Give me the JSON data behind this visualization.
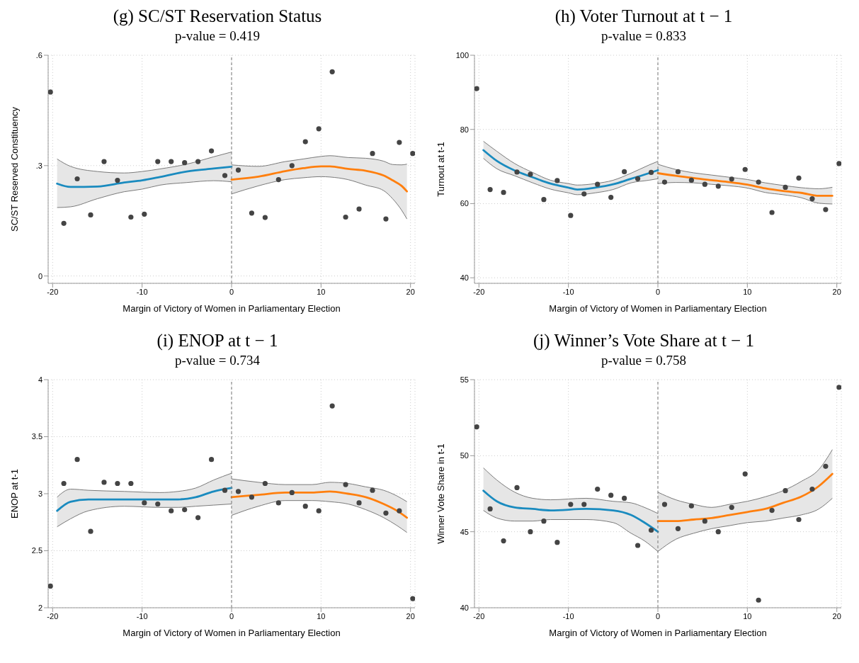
{
  "chart_data": [
    {
      "type": "scatter",
      "title": "(g) SC/ST Reservation Status",
      "subtitle": "p-value = 0.419",
      "xlabel": "Margin of Victory of Women in Parliamentary Election",
      "ylabel": "SC/ST Reserved Constituency",
      "xlim": [
        -20.5,
        20.5
      ],
      "xticks": [
        -20,
        -10,
        0,
        10,
        20
      ],
      "ylim": [
        -0.02,
        0.6
      ],
      "yticks": [
        0,
        {
          "value": 0.3,
          "label": ".3"
        },
        {
          "value": 0.6,
          "label": ".6"
        }
      ],
      "grid": true,
      "line_style": "solid",
      "ref_lines": [
        {
          "axis": "x",
          "value": 0,
          "line_style": "dashed",
          "color": "#777777"
        }
      ],
      "series": [
        {
          "marker": "circle",
          "color": "#444444",
          "x": [
            -20.25,
            -18.75,
            -17.25,
            -15.75,
            -14.25,
            -12.75,
            -11.25,
            -9.75,
            -8.25,
            -6.75,
            -5.25,
            -3.75,
            -2.25,
            -0.75,
            0.75,
            2.25,
            3.75,
            5.25,
            6.75,
            8.25,
            9.75,
            11.25,
            12.75,
            14.25,
            15.75,
            17.25,
            18.75,
            20.25
          ],
          "values": [
            0.5,
            0.143,
            0.264,
            0.166,
            0.311,
            0.26,
            0.16,
            0.168,
            0.311,
            0.311,
            0.308,
            0.311,
            0.34,
            0.273,
            0.288,
            0.171,
            0.159,
            0.262,
            0.3,
            0.365,
            0.4,
            0.555,
            0.16,
            0.182,
            0.333,
            0.155,
            0.363,
            0.333
          ]
        },
        {
          "type": "line",
          "color": "#1a8bbf",
          "x": [
            -19.5,
            -18,
            -15,
            -12,
            -10,
            -8,
            -5,
            -2,
            0
          ],
          "values": [
            0.251,
            0.242,
            0.243,
            0.254,
            0.26,
            0.269,
            0.284,
            0.292,
            0.297
          ],
          "lower": [
            0.186,
            0.188,
            0.21,
            0.229,
            0.236,
            0.247,
            0.254,
            0.259,
            0.256
          ],
          "upper": [
            0.318,
            0.298,
            0.284,
            0.28,
            0.284,
            0.291,
            0.304,
            0.324,
            0.337
          ]
        },
        {
          "type": "line",
          "color": "#7a7a7a",
          "x": [
            -19.5,
            -18,
            -15,
            -12,
            -10,
            -8,
            -5,
            -2,
            0
          ],
          "values": [
            0.186,
            0.188,
            0.21,
            0.229,
            0.236,
            0.247,
            0.254,
            0.259,
            0.256
          ]
        },
        {
          "type": "line",
          "color": "#7a7a7a",
          "x": [
            -19.5,
            -18,
            -15,
            -12,
            -10,
            -8,
            -5,
            -2,
            0
          ],
          "values": [
            0.318,
            0.298,
            0.284,
            0.28,
            0.284,
            0.291,
            0.304,
            0.324,
            0.337
          ]
        },
        {
          "type": "line",
          "color": "#7a7a7a",
          "x": [
            0,
            3,
            6,
            8,
            10,
            11,
            13,
            15,
            17,
            18,
            19,
            19.6
          ],
          "values": [
            0.223,
            0.245,
            0.262,
            0.267,
            0.27,
            0.269,
            0.262,
            0.247,
            0.232,
            0.21,
            0.179,
            0.155
          ]
        },
        {
          "type": "line",
          "color": "#7a7a7a",
          "x": [
            0,
            3,
            6,
            8,
            10,
            11,
            13,
            15,
            17,
            18,
            19,
            19.6
          ],
          "values": [
            0.302,
            0.298,
            0.311,
            0.318,
            0.325,
            0.327,
            0.322,
            0.32,
            0.312,
            0.303,
            0.302,
            0.304
          ]
        },
        {
          "type": "line",
          "color": "#ff7f0e",
          "x": [
            0,
            3,
            6,
            8,
            10,
            11,
            13,
            15,
            17,
            18,
            19,
            19.6
          ],
          "values": [
            0.262,
            0.27,
            0.285,
            0.293,
            0.298,
            0.298,
            0.291,
            0.286,
            0.273,
            0.26,
            0.245,
            0.23
          ],
          "lower": [
            0.223,
            0.245,
            0.262,
            0.267,
            0.27,
            0.269,
            0.262,
            0.247,
            0.232,
            0.21,
            0.179,
            0.155
          ],
          "upper": [
            0.302,
            0.298,
            0.311,
            0.318,
            0.325,
            0.327,
            0.322,
            0.32,
            0.312,
            0.303,
            0.302,
            0.304
          ]
        }
      ]
    },
    {
      "type": "scatter",
      "title": "(h) Voter Turnout at t − 1",
      "subtitle": "p-value = 0.833",
      "xlabel": "Margin of Victory of Women in Parliamentary Election",
      "ylabel": "Turnout at t-1",
      "xlim": [
        -20.5,
        20.5
      ],
      "xticks": [
        -20,
        -10,
        0,
        10,
        20
      ],
      "ylim": [
        38.5,
        100
      ],
      "yticks": [
        40,
        60,
        80,
        100
      ],
      "grid": true,
      "line_style": "solid",
      "ref_lines": [
        {
          "axis": "x",
          "value": 0,
          "line_style": "dashed",
          "color": "#777777"
        }
      ],
      "series": [
        {
          "marker": "circle",
          "color": "#444444",
          "x": [
            -20.25,
            -18.75,
            -17.25,
            -15.75,
            -14.25,
            -12.75,
            -11.25,
            -9.75,
            -8.25,
            -6.75,
            -5.25,
            -3.75,
            -2.25,
            -0.75,
            0.75,
            2.25,
            3.75,
            5.25,
            6.75,
            8.25,
            9.75,
            11.25,
            12.75,
            14.25,
            15.75,
            17.25,
            18.75,
            20.25
          ],
          "values": [
            91.0,
            63.8,
            63.0,
            68.5,
            67.9,
            61.1,
            66.2,
            56.8,
            62.6,
            65.2,
            61.7,
            68.6,
            66.7,
            68.4,
            65.8,
            68.6,
            66.3,
            65.2,
            64.7,
            66.6,
            69.2,
            65.8,
            57.6,
            64.4,
            66.9,
            61.3,
            58.4,
            70.8
          ]
        },
        {
          "type": "line",
          "color": "#1a8bbf",
          "x": [
            -19.5,
            -18,
            -16,
            -14,
            -12,
            -10,
            -9,
            -7,
            -5,
            -3,
            -1,
            0
          ],
          "values": [
            74.4,
            71.5,
            68.9,
            67.1,
            65.4,
            64.3,
            63.8,
            64.3,
            65.2,
            66.7,
            68.2,
            69.0
          ],
          "lower": [
            72.2,
            69.4,
            67.5,
            65.6,
            63.9,
            62.9,
            62.4,
            62.9,
            63.8,
            65.6,
            66.3,
            66.7
          ],
          "upper": [
            76.8,
            74.1,
            70.8,
            68.4,
            66.3,
            65.4,
            65.0,
            65.4,
            66.3,
            68.2,
            70.4,
            71.4
          ]
        },
        {
          "type": "line",
          "color": "#7a7a7a",
          "x": [
            -19.5,
            -18,
            -16,
            -14,
            -12,
            -10,
            -9,
            -7,
            -5,
            -3,
            -1,
            0
          ],
          "values": [
            72.2,
            69.4,
            67.5,
            65.6,
            63.9,
            62.9,
            62.4,
            62.9,
            63.8,
            65.6,
            66.3,
            66.7
          ]
        },
        {
          "type": "line",
          "color": "#7a7a7a",
          "x": [
            -19.5,
            -18,
            -16,
            -14,
            -12,
            -10,
            -9,
            -7,
            -5,
            -3,
            -1,
            0
          ],
          "values": [
            76.8,
            74.1,
            70.8,
            68.4,
            66.3,
            65.4,
            65.0,
            65.4,
            66.3,
            68.2,
            70.4,
            71.4
          ]
        },
        {
          "type": "line",
          "color": "#7a7a7a",
          "x": [
            0,
            2,
            4,
            6,
            8,
            10,
            12,
            14,
            16,
            18,
            19.5
          ],
          "values": [
            65.4,
            65.7,
            65.6,
            65.2,
            64.8,
            64.2,
            63.0,
            62.4,
            61.6,
            60.1,
            59.9
          ]
        },
        {
          "type": "line",
          "color": "#7a7a7a",
          "x": [
            0,
            2,
            4,
            6,
            8,
            10,
            12,
            14,
            16,
            18,
            19.5
          ],
          "values": [
            70.6,
            69.2,
            68.3,
            67.7,
            67.1,
            66.5,
            65.6,
            64.9,
            64.3,
            64.0,
            64.4
          ]
        },
        {
          "type": "line",
          "color": "#ff7f0e",
          "x": [
            0,
            2,
            4,
            6,
            8,
            10,
            12,
            14,
            16,
            18,
            19.5
          ],
          "values": [
            68.2,
            67.5,
            66.9,
            66.3,
            65.8,
            65.1,
            64.1,
            63.4,
            62.9,
            62.1,
            62.1
          ],
          "lower": [
            65.4,
            65.7,
            65.6,
            65.2,
            64.8,
            64.2,
            63.0,
            62.4,
            61.6,
            60.1,
            59.9
          ],
          "upper": [
            70.6,
            69.2,
            68.3,
            67.7,
            67.1,
            66.5,
            65.6,
            64.9,
            64.3,
            64.0,
            64.4
          ]
        }
      ]
    },
    {
      "type": "scatter",
      "title": "(i) ENOP at t − 1",
      "subtitle": "p-value = 0.734",
      "xlabel": "Margin of Victory of Women in Parliamentary Election",
      "ylabel": "ENOP at t-1",
      "xlim": [
        -20.5,
        20.5
      ],
      "xticks": [
        -20,
        -10,
        0,
        10,
        20
      ],
      "ylim": [
        2,
        4
      ],
      "yticks": [
        2,
        2.5,
        3,
        3.5,
        4
      ],
      "grid": true,
      "line_style": "solid",
      "ref_lines": [
        {
          "axis": "x",
          "value": 0,
          "line_style": "dashed",
          "color": "#777777"
        }
      ],
      "series": [
        {
          "marker": "circle",
          "color": "#444444",
          "x": [
            -20.25,
            -18.75,
            -17.25,
            -15.75,
            -14.25,
            -12.75,
            -11.25,
            -9.75,
            -8.25,
            -6.75,
            -5.25,
            -3.75,
            -2.25,
            -0.75,
            0.75,
            2.25,
            3.75,
            5.25,
            6.75,
            8.25,
            9.75,
            11.25,
            12.75,
            14.25,
            15.75,
            17.25,
            18.75,
            20.25
          ],
          "values": [
            2.19,
            3.09,
            3.3,
            2.67,
            3.1,
            3.09,
            3.09,
            2.92,
            2.91,
            2.85,
            2.86,
            2.79,
            3.3,
            3.03,
            3.02,
            2.97,
            3.09,
            2.92,
            3.01,
            2.89,
            2.85,
            3.77,
            3.08,
            2.92,
            3.03,
            2.83,
            2.85,
            2.08
          ]
        },
        {
          "type": "line",
          "color": "#1a8bbf",
          "x": [
            -19.5,
            -18,
            -16,
            -12,
            -8,
            -6,
            -4,
            -2,
            0
          ],
          "values": [
            2.85,
            2.93,
            2.95,
            2.95,
            2.95,
            2.95,
            2.97,
            3.02,
            3.05
          ],
          "lower": [
            2.71,
            2.78,
            2.85,
            2.89,
            2.88,
            2.88,
            2.89,
            2.9,
            2.91
          ],
          "upper": [
            2.97,
            3.04,
            3.03,
            3.02,
            3.01,
            3.02,
            3.05,
            3.12,
            3.18
          ]
        },
        {
          "type": "line",
          "color": "#7a7a7a",
          "x": [
            -19.5,
            -18,
            -16,
            -12,
            -8,
            -6,
            -4,
            -2,
            0
          ],
          "values": [
            2.71,
            2.78,
            2.85,
            2.89,
            2.88,
            2.88,
            2.89,
            2.9,
            2.91
          ]
        },
        {
          "type": "line",
          "color": "#7a7a7a",
          "x": [
            -19.5,
            -18,
            -16,
            -12,
            -8,
            -6,
            -4,
            -2,
            0
          ],
          "values": [
            2.97,
            3.04,
            3.03,
            3.02,
            3.01,
            3.02,
            3.05,
            3.12,
            3.18
          ]
        },
        {
          "type": "line",
          "color": "#7a7a7a",
          "x": [
            0,
            3,
            6,
            9,
            11,
            13,
            15,
            17,
            18.5,
            19.6
          ],
          "values": [
            2.81,
            2.89,
            2.94,
            2.94,
            2.93,
            2.91,
            2.86,
            2.79,
            2.72,
            2.66
          ]
        },
        {
          "type": "line",
          "color": "#7a7a7a",
          "x": [
            0,
            3,
            6,
            9,
            11,
            13,
            15,
            17,
            18.5,
            19.6
          ],
          "values": [
            3.13,
            3.1,
            3.08,
            3.08,
            3.1,
            3.09,
            3.06,
            3.03,
            2.98,
            2.93
          ]
        },
        {
          "type": "line",
          "color": "#ff7f0e",
          "x": [
            0,
            3,
            6,
            9,
            11,
            13,
            15,
            17,
            18.5,
            19.6
          ],
          "values": [
            2.97,
            2.99,
            3.01,
            3.01,
            3.02,
            3.0,
            2.97,
            2.91,
            2.85,
            2.79
          ],
          "lower": [
            2.81,
            2.89,
            2.94,
            2.94,
            2.93,
            2.91,
            2.86,
            2.79,
            2.72,
            2.66
          ],
          "upper": [
            3.13,
            3.1,
            3.08,
            3.08,
            3.1,
            3.09,
            3.06,
            3.03,
            2.98,
            2.93
          ]
        }
      ]
    },
    {
      "type": "scatter",
      "title": "(j) Winner’s Vote Share at t − 1",
      "subtitle": "p-value = 0.758",
      "xlabel": "Margin of Victory of Women in Parliamentary Election",
      "ylabel": "Winner Vote Share in t-1",
      "xlim": [
        -20.5,
        20.5
      ],
      "xticks": [
        -20,
        -10,
        0,
        10,
        20
      ],
      "ylim": [
        40,
        55
      ],
      "yticks": [
        40,
        45,
        50,
        55
      ],
      "grid": true,
      "line_style": "solid",
      "ref_lines": [
        {
          "axis": "x",
          "value": 0,
          "line_style": "dashed",
          "color": "#777777"
        }
      ],
      "series": [
        {
          "marker": "circle",
          "color": "#444444",
          "x": [
            -20.25,
            -18.75,
            -17.25,
            -15.75,
            -14.25,
            -12.75,
            -11.25,
            -9.75,
            -8.25,
            -6.75,
            -5.25,
            -3.75,
            -2.25,
            -0.75,
            0.75,
            2.25,
            3.75,
            5.25,
            6.75,
            8.25,
            9.75,
            11.25,
            12.75,
            14.25,
            15.75,
            17.25,
            18.75,
            20.25
          ],
          "values": [
            51.9,
            46.5,
            44.4,
            47.9,
            45.0,
            45.7,
            44.3,
            46.8,
            46.8,
            47.8,
            47.4,
            47.2,
            44.1,
            45.1,
            46.8,
            45.2,
            46.7,
            45.7,
            45.0,
            46.6,
            48.8,
            40.5,
            46.4,
            47.7,
            45.8,
            47.8,
            49.3,
            54.5
          ]
        },
        {
          "type": "line",
          "color": "#1a8bbf",
          "x": [
            -19.5,
            -18,
            -16,
            -14,
            -12,
            -8,
            -5,
            -3,
            -1.5,
            0
          ],
          "values": [
            47.7,
            47.0,
            46.6,
            46.5,
            46.4,
            46.5,
            46.4,
            46.1,
            45.6,
            45.0
          ],
          "lower": [
            46.4,
            45.9,
            45.7,
            45.7,
            45.8,
            45.8,
            45.6,
            44.9,
            44.4,
            43.7
          ],
          "upper": [
            49.2,
            48.4,
            47.6,
            47.2,
            47.1,
            47.2,
            47.0,
            46.9,
            46.6,
            46.2
          ]
        },
        {
          "type": "line",
          "color": "#7a7a7a",
          "x": [
            -19.5,
            -18,
            -16,
            -14,
            -12,
            -8,
            -5,
            -3,
            -1.5,
            0
          ],
          "values": [
            46.4,
            45.9,
            45.7,
            45.7,
            45.8,
            45.8,
            45.6,
            44.9,
            44.4,
            43.7
          ]
        },
        {
          "type": "line",
          "color": "#7a7a7a",
          "x": [
            -19.5,
            -18,
            -16,
            -14,
            -12,
            -8,
            -5,
            -3,
            -1.5,
            0
          ],
          "values": [
            49.2,
            48.4,
            47.6,
            47.2,
            47.1,
            47.2,
            47.0,
            46.9,
            46.6,
            46.2
          ]
        },
        {
          "type": "line",
          "color": "#7a7a7a",
          "x": [
            0,
            2,
            4,
            6,
            8,
            10,
            12,
            14,
            16,
            18,
            19.5
          ],
          "values": [
            43.7,
            44.5,
            44.9,
            45.2,
            45.4,
            45.6,
            45.7,
            45.9,
            46.1,
            46.5,
            47.2
          ]
        },
        {
          "type": "line",
          "color": "#7a7a7a",
          "x": [
            0,
            2,
            4,
            6,
            8,
            10,
            12,
            14,
            16,
            18,
            19.5
          ],
          "values": [
            47.6,
            47.1,
            46.8,
            46.6,
            46.8,
            47.0,
            47.3,
            47.7,
            48.3,
            49.1,
            50.4
          ]
        },
        {
          "type": "line",
          "color": "#ff7f0e",
          "x": [
            0,
            2,
            4,
            6,
            8,
            10,
            12,
            14,
            16,
            18,
            19.5
          ],
          "values": [
            45.7,
            45.7,
            45.8,
            45.9,
            46.1,
            46.3,
            46.5,
            46.9,
            47.3,
            48.0,
            48.8
          ],
          "lower": [
            43.7,
            44.5,
            44.9,
            45.2,
            45.4,
            45.6,
            45.7,
            45.9,
            46.1,
            46.5,
            47.2
          ],
          "upper": [
            47.6,
            47.1,
            46.8,
            46.6,
            46.8,
            47.0,
            47.3,
            47.7,
            48.3,
            49.1,
            50.4
          ]
        }
      ]
    }
  ]
}
